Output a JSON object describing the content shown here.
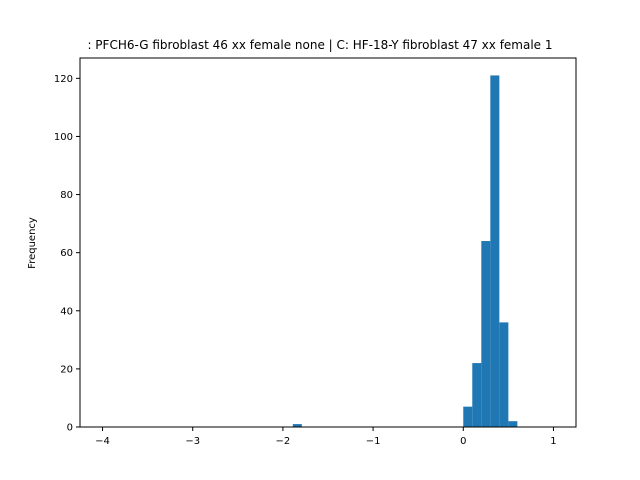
{
  "chart_data": {
    "type": "bar",
    "title": ": PFCH6-G fibroblast 46 xx female none | C: HF-18-Y fibroblast 47 xx female 1",
    "xlabel": "",
    "ylabel": "Frequency",
    "xlim": [
      -4.25,
      1.25
    ],
    "ylim": [
      0,
      127
    ],
    "xticks": [
      -4,
      -3,
      -2,
      -1,
      0,
      1
    ],
    "xtick_labels": [
      "−4",
      "−3",
      "−2",
      "−1",
      "0",
      "1"
    ],
    "yticks": [
      0,
      20,
      40,
      60,
      80,
      100,
      120
    ],
    "ytick_labels": [
      "0",
      "20",
      "40",
      "60",
      "80",
      "100",
      "120"
    ],
    "grid": false,
    "bar_color": "#1f77b4",
    "bins": [
      {
        "x0": -1.89,
        "x1": -1.79,
        "count": 1
      },
      {
        "x0": 0.0,
        "x1": 0.1,
        "count": 7
      },
      {
        "x0": 0.1,
        "x1": 0.2,
        "count": 22
      },
      {
        "x0": 0.2,
        "x1": 0.3,
        "count": 64
      },
      {
        "x0": 0.3,
        "x1": 0.4,
        "count": 121
      },
      {
        "x0": 0.4,
        "x1": 0.5,
        "count": 36
      },
      {
        "x0": 0.5,
        "x1": 0.6,
        "count": 2
      }
    ]
  }
}
